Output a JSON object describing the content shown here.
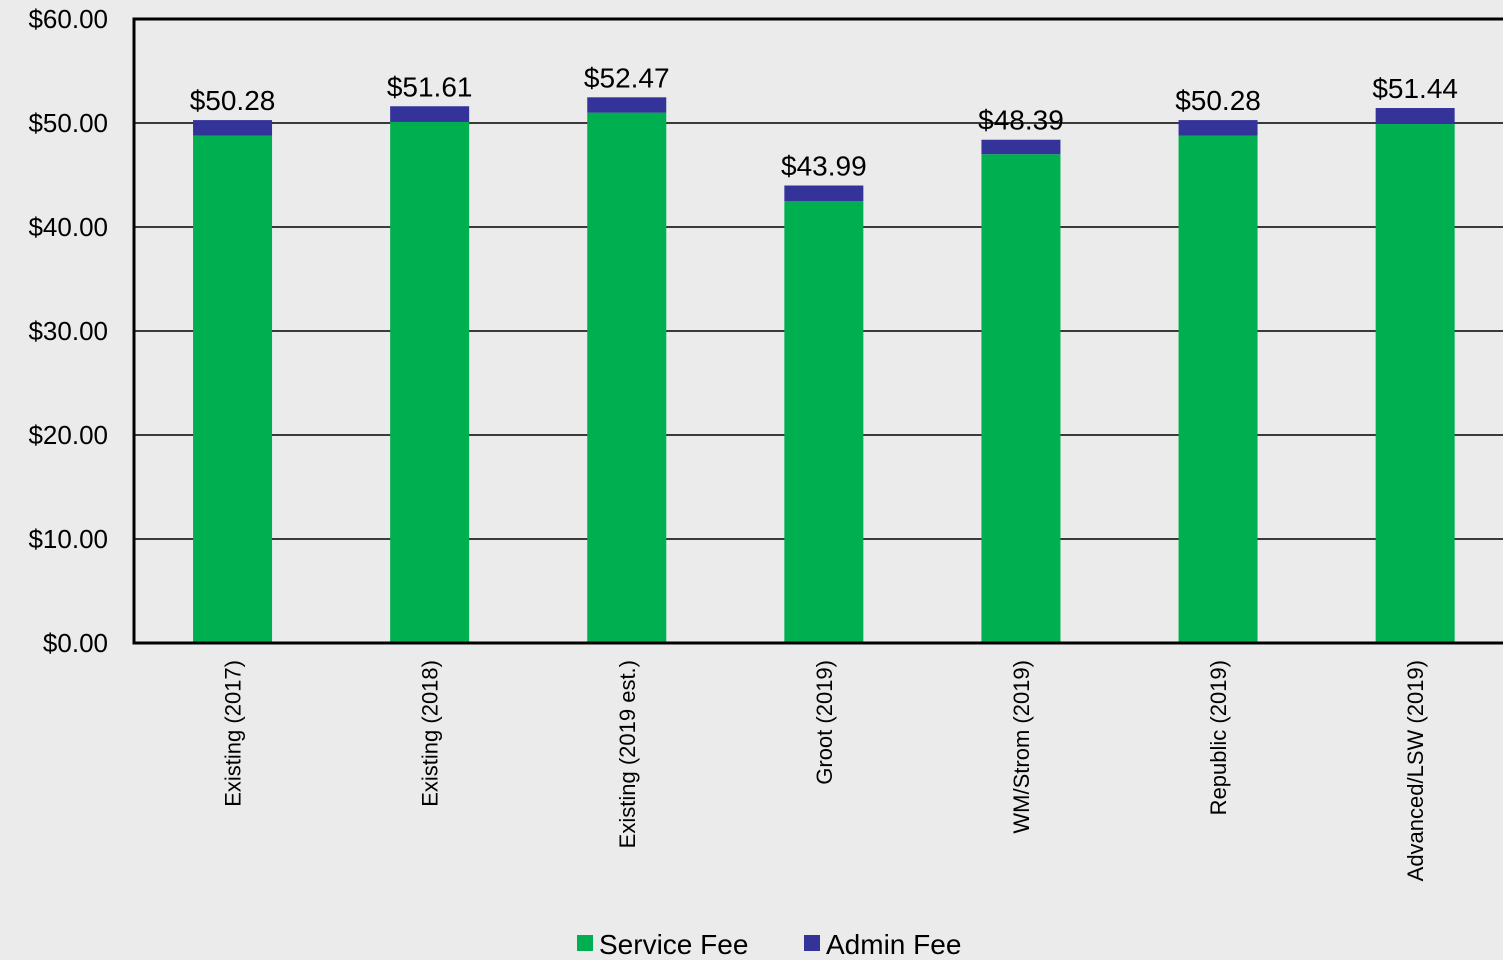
{
  "chart_data": {
    "type": "bar",
    "stacked": true,
    "categories": [
      "Existing (2017)",
      "Existing (2018)",
      "Existing (2019 est.)",
      "Groot (2019)",
      "WM/Strom (2019)",
      "Republic (2019)",
      "Advanced/LSW (2019)"
    ],
    "series": [
      {
        "name": "Service Fee",
        "color": "#00b050",
        "values": [
          48.8,
          50.1,
          51.0,
          42.5,
          47.0,
          48.8,
          49.9
        ]
      },
      {
        "name": "Admin Fee",
        "color": "#333399",
        "values": [
          1.48,
          1.51,
          1.47,
          1.49,
          1.39,
          1.48,
          1.54
        ]
      }
    ],
    "data_labels": [
      "$50.28",
      "$51.61",
      "$52.47",
      "$43.99",
      "$48.39",
      "$50.28",
      "$51.44"
    ],
    "y_ticks": [
      "$0.00",
      "$10.00",
      "$20.00",
      "$30.00",
      "$40.00",
      "$50.00",
      "$60.00"
    ],
    "ylim": [
      0,
      60
    ],
    "grid": true,
    "legend": "bottom"
  }
}
